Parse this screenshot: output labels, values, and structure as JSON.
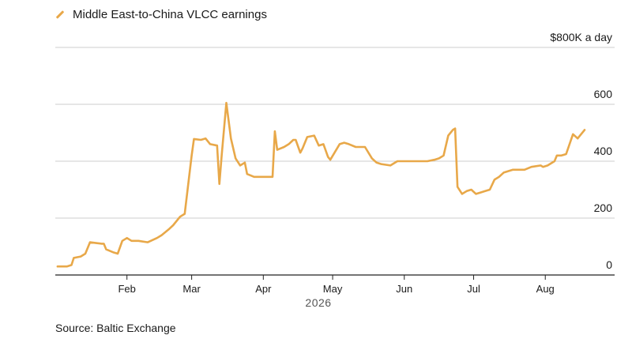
{
  "legend": {
    "label": "Middle East-to-China VLCC earnings"
  },
  "source": "Source: Baltic Exchange",
  "colors": {
    "line": "#e8a849",
    "grid": "#cccccc",
    "axis": "#222222"
  },
  "chart_data": {
    "type": "line",
    "series": [
      {
        "name": "Middle East-to-China VLCC earnings",
        "x": [
          "2026-01-02",
          "2026-01-06",
          "2026-01-08",
          "2026-01-09",
          "2026-01-12",
          "2026-01-14",
          "2026-01-15",
          "2026-01-16",
          "2026-01-19",
          "2026-01-21",
          "2026-01-22",
          "2026-01-23",
          "2026-01-26",
          "2026-01-28",
          "2026-01-30",
          "2026-02-01",
          "2026-02-03",
          "2026-02-06",
          "2026-02-10",
          "2026-02-14",
          "2026-02-16",
          "2026-02-19",
          "2026-02-21",
          "2026-02-24",
          "2026-02-26",
          "2026-03-01",
          "2026-03-02",
          "2026-03-05",
          "2026-03-07",
          "2026-03-09",
          "2026-03-12",
          "2026-03-13",
          "2026-03-14",
          "2026-03-16",
          "2026-03-18",
          "2026-03-20",
          "2026-03-22",
          "2026-03-24",
          "2026-03-25",
          "2026-03-28",
          "2026-04-01",
          "2026-04-05",
          "2026-04-06",
          "2026-04-07",
          "2026-04-10",
          "2026-04-12",
          "2026-04-14",
          "2026-04-15",
          "2026-04-17",
          "2026-04-18",
          "2026-04-20",
          "2026-04-23",
          "2026-04-25",
          "2026-04-27",
          "2026-04-29",
          "2026-04-30",
          "2026-05-04",
          "2026-05-06",
          "2026-05-08",
          "2026-05-11",
          "2026-05-15",
          "2026-05-18",
          "2026-05-20",
          "2026-05-22",
          "2026-05-26",
          "2026-05-29",
          "2026-05-30",
          "2026-06-01",
          "2026-06-07",
          "2026-06-11",
          "2026-06-14",
          "2026-06-16",
          "2026-06-18",
          "2026-06-20",
          "2026-06-21",
          "2026-06-22",
          "2026-06-23",
          "2026-06-24",
          "2026-06-26",
          "2026-06-28",
          "2026-06-30",
          "2026-07-02",
          "2026-07-04",
          "2026-07-06",
          "2026-07-08",
          "2026-07-10",
          "2026-07-12",
          "2026-07-14",
          "2026-07-18",
          "2026-07-23",
          "2026-07-26",
          "2026-07-30",
          "2026-07-31",
          "2026-08-02",
          "2026-08-05",
          "2026-08-06",
          "2026-08-08",
          "2026-08-10",
          "2026-08-13",
          "2026-08-15",
          "2026-08-18"
        ],
        "values": [
          30,
          30,
          35,
          60,
          65,
          75,
          95,
          115,
          112,
          110,
          110,
          90,
          80,
          75,
          120,
          130,
          120,
          120,
          115,
          130,
          140,
          160,
          175,
          205,
          215,
          420,
          478,
          475,
          480,
          460,
          455,
          320,
          420,
          605,
          480,
          410,
          385,
          395,
          355,
          345,
          345,
          345,
          505,
          440,
          450,
          460,
          475,
          475,
          430,
          445,
          485,
          490,
          455,
          460,
          415,
          405,
          460,
          465,
          460,
          450,
          450,
          410,
          395,
          390,
          385,
          400,
          400,
          400,
          400,
          400,
          405,
          410,
          420,
          490,
          500,
          510,
          515,
          310,
          285,
          295,
          300,
          285,
          290,
          295,
          300,
          335,
          345,
          360,
          370,
          370,
          380,
          385,
          380,
          385,
          400,
          420,
          420,
          425,
          495,
          480,
          510
        ]
      }
    ],
    "xlim": [
      "2026-01-01",
      "2026-08-31"
    ],
    "xticks": [
      {
        "date": "2026-02-01",
        "label": "Feb"
      },
      {
        "date": "2026-03-01",
        "label": "Mar"
      },
      {
        "date": "2026-04-01",
        "label": "Apr"
      },
      {
        "date": "2026-05-01",
        "label": "May"
      },
      {
        "date": "2026-06-01",
        "label": "Jun"
      },
      {
        "date": "2026-07-01",
        "label": "Jul"
      },
      {
        "date": "2026-08-01",
        "label": "Aug"
      }
    ],
    "year_label": "2026",
    "yticks": [
      {
        "value": 0,
        "label": "0"
      },
      {
        "value": 200,
        "label": "200"
      },
      {
        "value": 400,
        "label": "400"
      },
      {
        "value": 600,
        "label": "600"
      },
      {
        "value": 800,
        "label": "$800K a day"
      }
    ],
    "ylim": [
      0,
      800
    ],
    "grid": true,
    "legend_position": "top-left"
  }
}
